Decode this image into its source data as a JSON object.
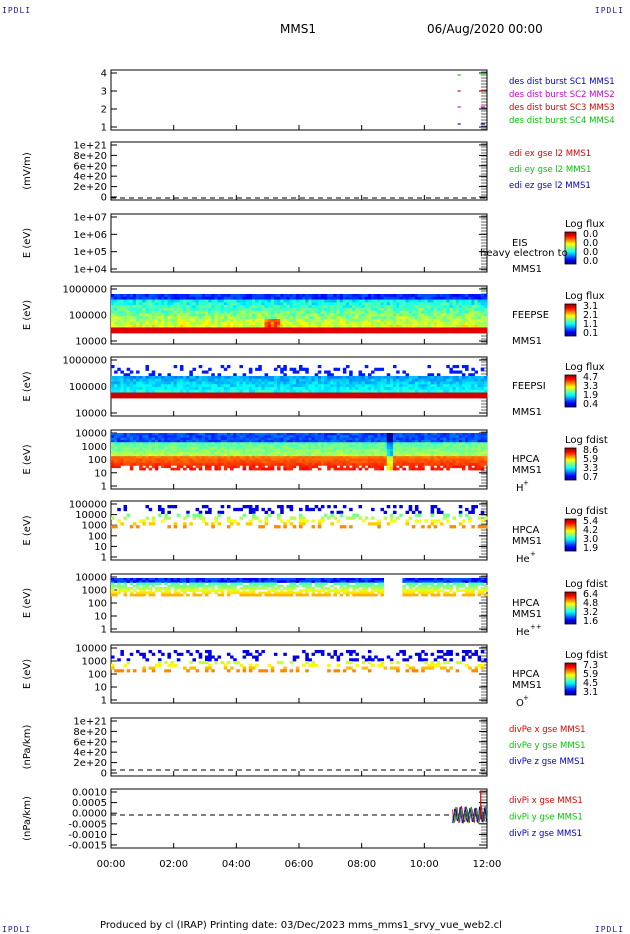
{
  "corners": {
    "label": "IPDLI"
  },
  "header": {
    "spacecraft": "MMS1",
    "date": "06/Aug/2020 00:00"
  },
  "footer": {
    "text": "Produced by cl (IRAP)   Printing date: 03/Dec/2023   mms_mms1_srvy_vue_web2.cl"
  },
  "time_axis": {
    "ticks": [
      "00:00",
      "02:00",
      "04:00",
      "06:00",
      "08:00",
      "10:00",
      "12:00"
    ],
    "range_hours": [
      0,
      12
    ]
  },
  "colors": {
    "blue": "#0000c8",
    "magenta": "#d000d0",
    "red": "#e00000",
    "green": "#00c800"
  },
  "panels": [
    {
      "id": "dist",
      "ylabel": "",
      "yticks": [
        "4",
        "3",
        "2",
        "1"
      ],
      "legend": [
        {
          "text": "des dist burst SC1 MMS1",
          "color": "#0000c8"
        },
        {
          "text": "des dist burst SC2 MMS2",
          "color": "#d000d0"
        },
        {
          "text": "des dist burst SC3 MMS3",
          "color": "#e00000"
        },
        {
          "text": "des dist burst SC4 MMS4",
          "color": "#00c800"
        }
      ]
    },
    {
      "id": "edi",
      "ylabel": "(mV/m)",
      "yticks": [
        "1e+21",
        "8e+20",
        "6e+20",
        "4e+20",
        "2e+20",
        "0"
      ],
      "legend": [
        {
          "text": "edi ex gse l2 MMS1",
          "color": "#e00000"
        },
        {
          "text": "edi ey gse l2 MMS1",
          "color": "#00c800"
        },
        {
          "text": "edi ez gse l2 MMS1",
          "color": "#0000c8"
        }
      ]
    },
    {
      "id": "eis",
      "ylabel": "E (eV)",
      "yticks": [
        "1e+07",
        "1e+06",
        "1e+05",
        "1e+04"
      ],
      "instrument": "EIS",
      "overlay": "heavy electron to",
      "sc": "MMS1",
      "cbar_title": "Log flux",
      "cbar_ticks": [
        "0.0",
        "0.0",
        "0.0",
        "0.0"
      ]
    },
    {
      "id": "feepse",
      "ylabel": "E (eV)",
      "yticks": [
        "1000000",
        "100000",
        "10000"
      ],
      "instrument": "FEEPSE",
      "sc": "MMS1",
      "cbar_title": "Log flux",
      "cbar_ticks": [
        "3.1",
        "2.1",
        "1.1",
        "0.1"
      ]
    },
    {
      "id": "feepsi",
      "ylabel": "E (eV)",
      "yticks": [
        "1000000",
        "100000",
        "10000"
      ],
      "instrument": "FEEPSI",
      "sc": "MMS1",
      "cbar_title": "Log flux",
      "cbar_ticks": [
        "4.7",
        "3.3",
        "1.9",
        "0.4"
      ]
    },
    {
      "id": "hpca_h",
      "ylabel": "E (eV)",
      "yticks": [
        "10000",
        "1000",
        "100",
        "10",
        "1"
      ],
      "instrument": "HPCA",
      "sc": "MMS1",
      "species": "H",
      "charge": "+",
      "cbar_title": "Log fdist",
      "cbar_ticks": [
        "8.6",
        "5.9",
        "3.3",
        "0.7"
      ]
    },
    {
      "id": "hpca_he",
      "ylabel": "E (eV)",
      "yticks": [
        "100000",
        "10000",
        "1000",
        "100",
        "10",
        "1"
      ],
      "instrument": "HPCA",
      "sc": "MMS1",
      "species": "He",
      "charge": "+",
      "cbar_title": "Log fdist",
      "cbar_ticks": [
        "5.4",
        "4.2",
        "3.0",
        "1.9"
      ]
    },
    {
      "id": "hpca_he2",
      "ylabel": "E (eV)",
      "yticks": [
        "10000",
        "1000",
        "100",
        "10",
        "1"
      ],
      "instrument": "HPCA",
      "sc": "MMS1",
      "species": "He",
      "charge": "++",
      "cbar_title": "Log fdist",
      "cbar_ticks": [
        "6.4",
        "4.8",
        "3.2",
        "1.6"
      ]
    },
    {
      "id": "hpca_o",
      "ylabel": "E (eV)",
      "yticks": [
        "10000",
        "1000",
        "100",
        "10",
        "1"
      ],
      "instrument": "HPCA",
      "sc": "MMS1",
      "species": "O",
      "charge": "+",
      "cbar_title": "Log fdist",
      "cbar_ticks": [
        "7.3",
        "5.9",
        "4.5",
        "3.1"
      ]
    },
    {
      "id": "divpe",
      "ylabel": "(nPa/km)",
      "yticks": [
        "1e+21",
        "8e+20",
        "6e+20",
        "4e+20",
        "2e+20",
        "0"
      ],
      "legend": [
        {
          "text": "divPe x gse MMS1",
          "color": "#e00000"
        },
        {
          "text": "divPe y gse MMS1",
          "color": "#00c800"
        },
        {
          "text": "divPe z gse MMS1",
          "color": "#0000c8"
        }
      ]
    },
    {
      "id": "divpi",
      "ylabel": "(nPa/km)",
      "yticks": [
        "0.0010",
        "0.0005",
        "0.0000",
        "-0.0005",
        "-0.0010",
        "-0.0015"
      ],
      "legend": [
        {
          "text": "divPi x gse MMS1",
          "color": "#e00000"
        },
        {
          "text": "divPi y gse MMS1",
          "color": "#00c800"
        },
        {
          "text": "divPi z gse MMS1",
          "color": "#0000c8"
        }
      ]
    }
  ],
  "chart_data": [
    {
      "type": "line",
      "title": "",
      "xlabel": "",
      "ylabel": "",
      "xlim": [
        0,
        12
      ],
      "ylim": [
        0.5,
        4.5
      ],
      "series": [
        {
          "name": "des dist burst SC1 MMS1",
          "segments": [
            [
              11.0,
              1
            ],
            [
              11.8,
              1
            ]
          ]
        },
        {
          "name": "des dist burst SC2 MMS2",
          "segments": [
            [
              11.0,
              2
            ],
            [
              11.8,
              2
            ]
          ]
        },
        {
          "name": "des dist burst SC3 MMS3",
          "segments": [
            [
              11.0,
              3
            ],
            [
              11.8,
              3
            ]
          ]
        },
        {
          "name": "des dist burst SC4 MMS4",
          "segments": [
            [
              11.0,
              4
            ],
            [
              11.8,
              4
            ]
          ]
        }
      ]
    },
    {
      "type": "line",
      "ylabel": "(mV/m)",
      "ylim": [
        0,
        1e+21
      ],
      "series": [
        {
          "name": "edi ex gse l2 MMS1",
          "values": []
        },
        {
          "name": "edi ey gse l2 MMS1",
          "values": []
        },
        {
          "name": "edi ez gse l2 MMS1",
          "values": []
        }
      ],
      "reference_line": 0
    },
    {
      "type": "heatmap",
      "instrument": "EIS",
      "ylabel": "E (eV)",
      "ylim": [
        10000.0,
        10000000.0
      ],
      "yscale": "log",
      "colorbar": [
        0.0,
        0.0,
        0.0,
        0.0
      ],
      "data": "empty"
    },
    {
      "type": "heatmap",
      "instrument": "FEEPSE",
      "ylabel": "E (eV)",
      "ylim": [
        10000.0,
        1000000.0
      ],
      "yscale": "log",
      "colorbar": [
        0.1,
        3.1
      ]
    },
    {
      "type": "heatmap",
      "instrument": "FEEPSI",
      "ylabel": "E (eV)",
      "ylim": [
        10000.0,
        1000000.0
      ],
      "yscale": "log",
      "colorbar": [
        0.4,
        4.7
      ]
    },
    {
      "type": "heatmap",
      "instrument": "HPCA H+",
      "ylabel": "E (eV)",
      "ylim": [
        1,
        10000.0
      ],
      "yscale": "log",
      "colorbar": [
        0.7,
        8.6
      ]
    },
    {
      "type": "heatmap",
      "instrument": "HPCA He+",
      "ylabel": "E (eV)",
      "ylim": [
        1,
        100000.0
      ],
      "yscale": "log",
      "colorbar": [
        1.9,
        5.4
      ]
    },
    {
      "type": "heatmap",
      "instrument": "HPCA He++",
      "ylabel": "E (eV)",
      "ylim": [
        1,
        10000.0
      ],
      "yscale": "log",
      "colorbar": [
        1.6,
        6.4
      ]
    },
    {
      "type": "heatmap",
      "instrument": "HPCA O+",
      "ylabel": "E (eV)",
      "ylim": [
        1,
        10000.0
      ],
      "yscale": "log",
      "colorbar": [
        3.1,
        7.3
      ]
    },
    {
      "type": "line",
      "ylabel": "(nPa/km)",
      "ylim": [
        0,
        1e+21
      ],
      "series": [
        {
          "name": "divPe x gse MMS1",
          "values": []
        },
        {
          "name": "divPe y gse MMS1",
          "values": []
        },
        {
          "name": "divPe z gse MMS1",
          "values": []
        }
      ],
      "reference_line": 0
    },
    {
      "type": "line",
      "ylabel": "(nPa/km)",
      "ylim": [
        -0.0015,
        0.0012
      ],
      "reference_line": 0,
      "series": [
        {
          "name": "divPi x gse MMS1",
          "x": [
            10.9,
            11.2,
            11.5,
            11.8,
            11.9,
            12.0
          ],
          "values": [
            -0.0004,
            0.0002,
            -0.0003,
            0.0003,
            0.001,
            -0.0002
          ]
        },
        {
          "name": "divPi y gse MMS1",
          "x": [
            10.9,
            11.2,
            11.5,
            11.8,
            12.0
          ],
          "values": [
            -0.0006,
            0.0001,
            -0.0002,
            0.0001,
            0.0
          ]
        },
        {
          "name": "divPi z gse MMS1",
          "x": [
            10.9,
            11.2,
            11.5,
            11.8,
            12.0
          ],
          "values": [
            -0.0003,
            0.0,
            0.0001,
            -0.0001,
            0.0
          ]
        }
      ]
    }
  ]
}
